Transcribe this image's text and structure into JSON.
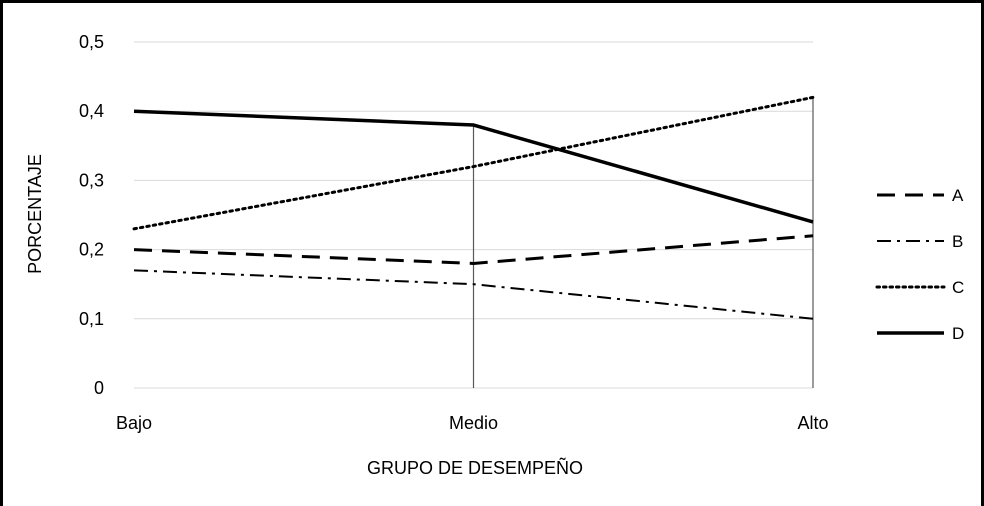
{
  "chart_data": {
    "type": "line",
    "title": "",
    "xlabel": "GRUPO DE DESEMPEÑO",
    "ylabel": "PORCENTAJE",
    "categories": [
      "Bajo",
      "Medio",
      "Alto"
    ],
    "ylim": [
      0,
      0.5
    ],
    "yticks": [
      "0",
      "0,1",
      "0,2",
      "0,3",
      "0,4",
      "0,5"
    ],
    "grid": true,
    "legend_position": "right",
    "drop_lines": true,
    "series": [
      {
        "name": "A",
        "values": [
          0.2,
          0.18,
          0.22
        ],
        "dash": "dashed"
      },
      {
        "name": "B",
        "values": [
          0.17,
          0.15,
          0.1
        ],
        "dash": "dash-dot"
      },
      {
        "name": "C",
        "values": [
          0.23,
          0.32,
          0.42
        ],
        "dash": "dotted"
      },
      {
        "name": "D",
        "values": [
          0.4,
          0.38,
          0.24
        ],
        "dash": "solid"
      }
    ],
    "colors": {
      "line": "#000000",
      "grid": "#d9d9d9",
      "dropline": "#595959",
      "border": "#000000"
    }
  }
}
